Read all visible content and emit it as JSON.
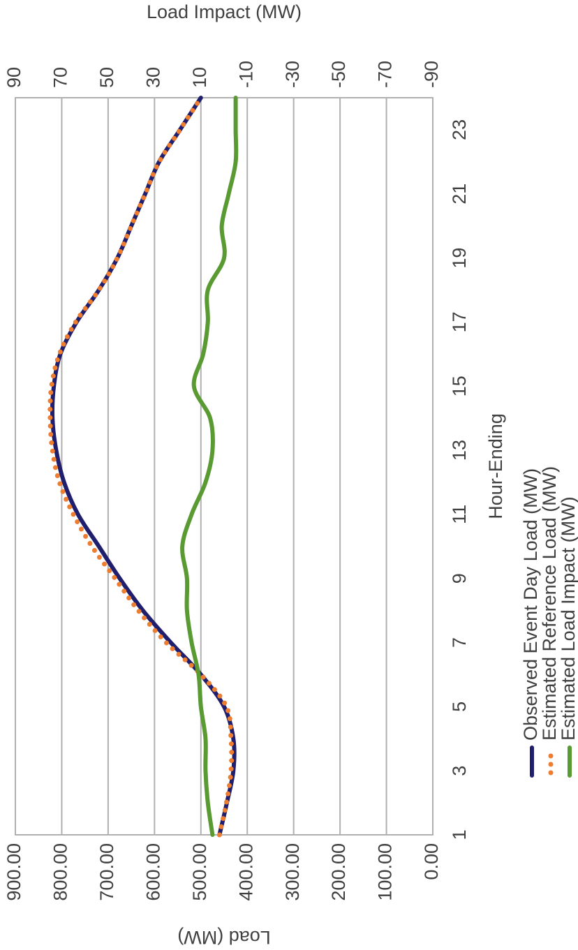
{
  "chart_data": {
    "type": "line",
    "x_label": "Hour-Ending",
    "y_label": "Load (MW)",
    "y2_label": "Load Impact (MW)",
    "categories": [
      "1",
      null,
      "3",
      null,
      "5",
      null,
      "7",
      null,
      "9",
      null,
      "11",
      null,
      "13",
      null,
      "15",
      null,
      "17",
      null,
      "19",
      null,
      "21",
      null,
      "23",
      null
    ],
    "ylim": [
      0,
      900
    ],
    "yticks": [
      {
        "value": 0,
        "label": "0.00"
      },
      {
        "value": 100,
        "label": "100.00"
      },
      {
        "value": 200,
        "label": "200.00"
      },
      {
        "value": 300,
        "label": "300.00"
      },
      {
        "value": 400,
        "label": "400.00"
      },
      {
        "value": 500,
        "label": "500.00"
      },
      {
        "value": 600,
        "label": "600.00"
      },
      {
        "value": 700,
        "label": "700.00"
      },
      {
        "value": 800,
        "label": "800.00"
      },
      {
        "value": 900,
        "label": "900.00"
      }
    ],
    "y2lim": [
      -90,
      90
    ],
    "y2ticks": [
      -90,
      -70,
      -50,
      -30,
      -10,
      10,
      30,
      50,
      70,
      90
    ],
    "grid": true,
    "legend": "bottom",
    "series": [
      {
        "name": "Observed Event Day Load (MW)",
        "color": "#1f1f6e",
        "style": "solid",
        "values": [
          460,
          444,
          430,
          430,
          450,
          500,
          565,
          625,
          675,
          720,
          765,
          795,
          812,
          820,
          817,
          803,
          768,
          720,
          680,
          650,
          620,
          590,
          545,
          500
        ]
      },
      {
        "name": "Estimated Reference Load (MW)",
        "color": "#ed7d31",
        "style": "dotted",
        "values": [
          460,
          445,
          435,
          435,
          445,
          500,
          575,
          635,
          685,
          735,
          775,
          805,
          820,
          825,
          822,
          805,
          770,
          720,
          680,
          650,
          620,
          590,
          545,
          500
        ]
      },
      {
        "name": "Estimated Load Impact (MW)",
        "color": "#5a9a32",
        "style": "solid",
        "axis": "y2",
        "values": [
          5,
          7,
          8,
          8,
          10,
          11,
          14,
          16,
          16,
          18,
          14,
          8,
          5,
          6,
          13,
          9,
          7,
          7,
          0,
          1,
          -2,
          -5,
          -5,
          -5
        ]
      }
    ]
  }
}
